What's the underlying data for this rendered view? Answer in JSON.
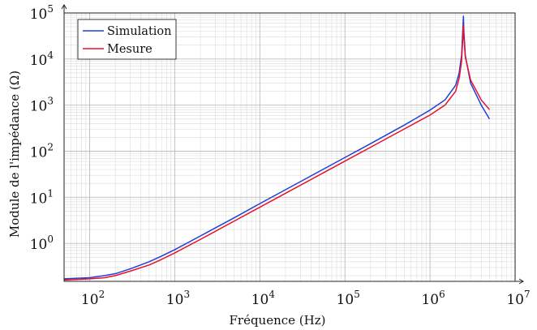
{
  "chart_data": {
    "type": "line",
    "title": "",
    "xlabel": "Fréquence (Hz)",
    "ylabel": "Module de l'impédance (Ω)",
    "x_scale": "log",
    "y_scale": "log",
    "xlim": [
      50,
      10000000
    ],
    "ylim": [
      0.15,
      100000
    ],
    "grid": true,
    "legend_position": "top-left",
    "x_ticks": [
      {
        "base": "10",
        "exp": "2"
      },
      {
        "base": "10",
        "exp": "3"
      },
      {
        "base": "10",
        "exp": "4"
      },
      {
        "base": "10",
        "exp": "5"
      },
      {
        "base": "10",
        "exp": "6"
      },
      {
        "base": "10",
        "exp": "7"
      }
    ],
    "y_ticks": [
      {
        "base": "10",
        "exp": "0"
      },
      {
        "base": "10",
        "exp": "1"
      },
      {
        "base": "10",
        "exp": "2"
      },
      {
        "base": "10",
        "exp": "3"
      },
      {
        "base": "10",
        "exp": "4"
      },
      {
        "base": "10",
        "exp": "5"
      }
    ],
    "series": [
      {
        "name": "Simulation",
        "color": "#1f3fd6",
        "points": [
          [
            50,
            0.17
          ],
          [
            100,
            0.18
          ],
          [
            150,
            0.2
          ],
          [
            200,
            0.22
          ],
          [
            300,
            0.28
          ],
          [
            500,
            0.4
          ],
          [
            700,
            0.53
          ],
          [
            1000,
            0.73
          ],
          [
            2000,
            1.45
          ],
          [
            5000,
            3.6
          ],
          [
            10000,
            7.3
          ],
          [
            20000,
            14.6
          ],
          [
            50000,
            36.5
          ],
          [
            100000,
            73
          ],
          [
            200000,
            146
          ],
          [
            500000,
            370
          ],
          [
            1000000,
            780
          ],
          [
            1500000,
            1300
          ],
          [
            2000000,
            2700
          ],
          [
            2200000,
            5000
          ],
          [
            2350000,
            12000
          ],
          [
            2430000,
            45000
          ],
          [
            2470000,
            85000
          ],
          [
            2500000,
            40000
          ],
          [
            2600000,
            12000
          ],
          [
            3000000,
            3000
          ],
          [
            4000000,
            1000
          ],
          [
            5000000,
            500
          ]
        ]
      },
      {
        "name": "Mesure",
        "color": "#e8102a",
        "points": [
          [
            50,
            0.16
          ],
          [
            100,
            0.17
          ],
          [
            150,
            0.18
          ],
          [
            200,
            0.2
          ],
          [
            300,
            0.25
          ],
          [
            500,
            0.34
          ],
          [
            700,
            0.45
          ],
          [
            1000,
            0.62
          ],
          [
            2000,
            1.22
          ],
          [
            5000,
            3.05
          ],
          [
            10000,
            6.1
          ],
          [
            20000,
            12.2
          ],
          [
            50000,
            30.5
          ],
          [
            100000,
            61
          ],
          [
            200000,
            122
          ],
          [
            500000,
            305
          ],
          [
            1000000,
            610
          ],
          [
            1500000,
            1000
          ],
          [
            2000000,
            2000
          ],
          [
            2200000,
            3800
          ],
          [
            2350000,
            9000
          ],
          [
            2430000,
            30000
          ],
          [
            2470000,
            55000
          ],
          [
            2500000,
            30000
          ],
          [
            2600000,
            11000
          ],
          [
            3000000,
            3500
          ],
          [
            4000000,
            1300
          ],
          [
            5000000,
            800
          ]
        ]
      }
    ]
  }
}
